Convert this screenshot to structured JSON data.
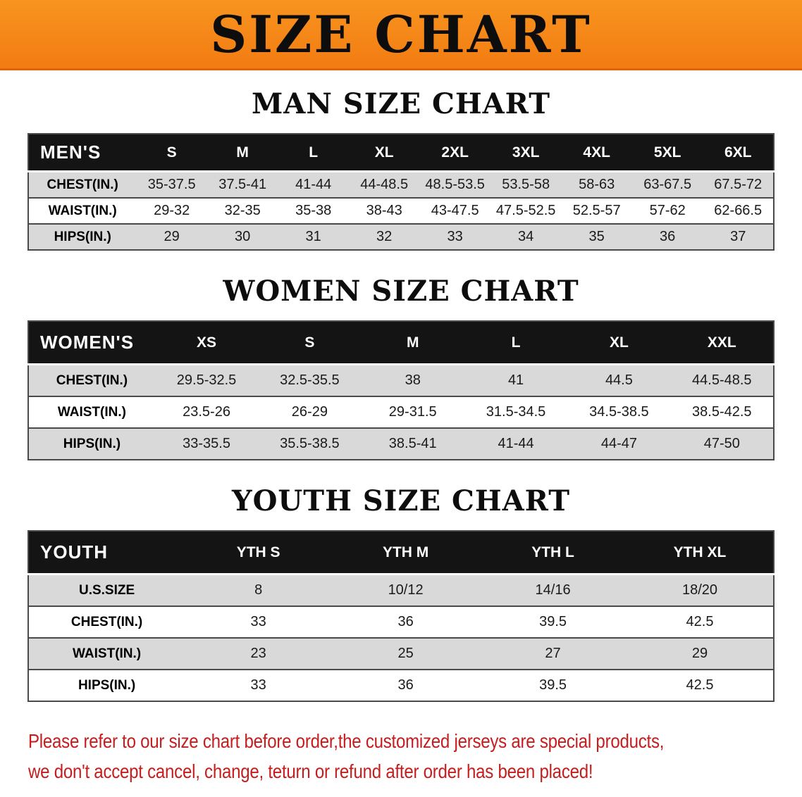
{
  "banner": {
    "title": "SIZE CHART",
    "bg_color": "#f5831f"
  },
  "colors": {
    "banner_orange": "#f5831f",
    "table_header_bg": "#141414",
    "row_stripe_gray": "#d9d9d9",
    "disclaimer_red": "#c41e1e"
  },
  "sections": [
    {
      "id": "men",
      "heading": "MAN SIZE CHART",
      "table": {
        "header": [
          "MEN'S",
          "S",
          "M",
          "L",
          "XL",
          "2XL",
          "3XL",
          "4XL",
          "5XL",
          "6XL"
        ],
        "rows": [
          {
            "label": "CHEST(IN.)",
            "values": [
              "35-37.5",
              "37.5-41",
              "41-44",
              "44-48.5",
              "48.5-53.5",
              "53.5-58",
              "58-63",
              "63-67.5",
              "67.5-72"
            ]
          },
          {
            "label": "WAIST(IN.)",
            "values": [
              "29-32",
              "32-35",
              "35-38",
              "38-43",
              "43-47.5",
              "47.5-52.5",
              "52.5-57",
              "57-62",
              "62-66.5"
            ]
          },
          {
            "label": "HIPS(IN.)",
            "values": [
              "29",
              "30",
              "31",
              "32",
              "33",
              "34",
              "35",
              "36",
              "37"
            ]
          }
        ]
      }
    },
    {
      "id": "women",
      "heading": "WOMEN SIZE CHART",
      "table": {
        "header": [
          "WOMEN'S",
          "XS",
          "S",
          "M",
          "L",
          "XL",
          "XXL"
        ],
        "rows": [
          {
            "label": "CHEST(IN.)",
            "values": [
              "29.5-32.5",
              "32.5-35.5",
              "38",
              "41",
              "44.5",
              "44.5-48.5"
            ]
          },
          {
            "label": "WAIST(IN.)",
            "values": [
              "23.5-26",
              "26-29",
              "29-31.5",
              "31.5-34.5",
              "34.5-38.5",
              "38.5-42.5"
            ]
          },
          {
            "label": "HIPS(IN.)",
            "values": [
              "33-35.5",
              "35.5-38.5",
              "38.5-41",
              "41-44",
              "44-47",
              "47-50"
            ]
          }
        ]
      }
    },
    {
      "id": "youth",
      "heading": "YOUTH SIZE CHART",
      "table": {
        "header": [
          "YOUTH",
          "YTH S",
          "YTH M",
          "YTH L",
          "YTH XL"
        ],
        "rows": [
          {
            "label": "U.S.SIZE",
            "values": [
              "8",
              "10/12",
              "14/16",
              "18/20"
            ]
          },
          {
            "label": "CHEST(IN.)",
            "values": [
              "33",
              "36",
              "39.5",
              "42.5"
            ]
          },
          {
            "label": "WAIST(IN.)",
            "values": [
              "23",
              "25",
              "27",
              "29"
            ]
          },
          {
            "label": "HIPS(IN.)",
            "values": [
              "33",
              "36",
              "39.5",
              "42.5"
            ]
          }
        ]
      }
    }
  ],
  "disclaimer": {
    "line1": "Please refer to our size chart before order,the customized jerseys are special products,",
    "line2": "we don't accept cancel, change, teturn or refund after order has been placed!"
  }
}
